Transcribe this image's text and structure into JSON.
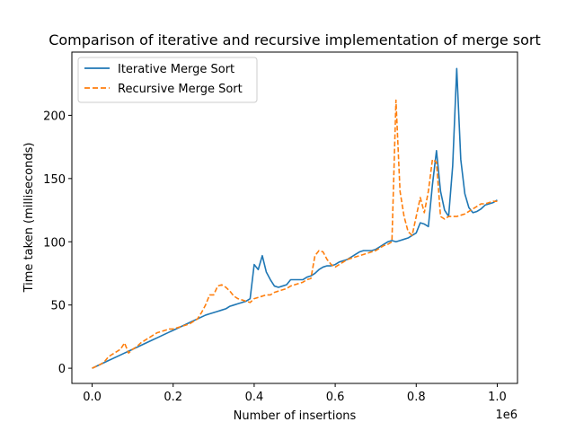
{
  "chart_data": {
    "type": "line",
    "title": "Comparison of iterative and recursive implementation of merge sort",
    "xlabel": "Number of insertions",
    "ylabel": "Time taken (milliseconds)",
    "x_offset_label": "1e6",
    "xlim": [
      -0.05,
      1.05
    ],
    "ylim": [
      -12,
      250
    ],
    "xticks": [
      0.0,
      0.2,
      0.4,
      0.6,
      0.8,
      1.0
    ],
    "xtick_labels": [
      "0.0",
      "0.2",
      "0.4",
      "0.6",
      "0.8",
      "1.0"
    ],
    "yticks": [
      0,
      50,
      100,
      150,
      200
    ],
    "ytick_labels": [
      "0",
      "50",
      "100",
      "150",
      "200"
    ],
    "grid": false,
    "legend_position": "top-left",
    "x": [
      0.0,
      0.01,
      0.02,
      0.03,
      0.04,
      0.05,
      0.06,
      0.07,
      0.08,
      0.09,
      0.1,
      0.11,
      0.12,
      0.13,
      0.14,
      0.15,
      0.16,
      0.17,
      0.18,
      0.19,
      0.2,
      0.21,
      0.22,
      0.23,
      0.24,
      0.25,
      0.26,
      0.27,
      0.28,
      0.29,
      0.3,
      0.31,
      0.32,
      0.33,
      0.34,
      0.35,
      0.36,
      0.37,
      0.38,
      0.39,
      0.4,
      0.41,
      0.42,
      0.43,
      0.44,
      0.45,
      0.46,
      0.47,
      0.48,
      0.49,
      0.5,
      0.51,
      0.52,
      0.53,
      0.54,
      0.55,
      0.56,
      0.57,
      0.58,
      0.59,
      0.6,
      0.61,
      0.62,
      0.63,
      0.64,
      0.65,
      0.66,
      0.67,
      0.68,
      0.69,
      0.7,
      0.71,
      0.72,
      0.73,
      0.74,
      0.75,
      0.76,
      0.77,
      0.78,
      0.79,
      0.8,
      0.81,
      0.82,
      0.83,
      0.84,
      0.85,
      0.86,
      0.87,
      0.88,
      0.89,
      0.9,
      0.91,
      0.92,
      0.93,
      0.94,
      0.95,
      0.96,
      0.97,
      0.98,
      0.99,
      1.0
    ],
    "series": [
      {
        "name": "Iterative Merge Sort",
        "color": "#1f77b4",
        "style": "solid",
        "values": [
          0,
          1.5,
          3,
          4.5,
          6,
          7.5,
          9,
          10.5,
          12,
          13.5,
          15,
          16.5,
          18,
          19.5,
          21,
          22.5,
          24,
          25.5,
          27,
          28.5,
          30,
          31.5,
          33,
          34.5,
          36,
          37.5,
          39,
          40.5,
          42,
          43,
          44,
          45,
          46,
          47,
          49,
          50,
          51,
          52,
          53,
          55,
          82,
          78,
          89,
          76,
          70,
          65,
          64,
          65,
          66,
          70,
          70,
          70,
          70,
          72,
          73,
          75,
          78,
          80,
          81,
          81,
          82,
          84,
          85,
          86,
          88,
          90,
          92,
          93,
          93,
          93,
          94,
          96,
          98,
          100,
          101,
          100,
          101,
          102,
          103,
          105,
          107,
          115,
          114,
          112,
          145,
          172,
          140,
          125,
          120,
          160,
          237,
          165,
          138,
          127,
          123,
          124,
          126,
          129,
          130,
          131,
          133
        ]
      },
      {
        "name": "Recursive Merge Sort",
        "color": "#ff7f0e",
        "style": "dashed",
        "values": [
          0,
          1.5,
          3,
          5,
          9,
          11,
          13,
          15,
          20,
          12,
          15,
          17,
          20,
          22,
          24,
          26,
          28,
          29,
          30,
          31,
          31,
          32,
          33,
          34,
          35,
          37,
          39,
          44,
          50,
          58,
          58,
          65,
          66,
          64,
          61,
          57,
          55,
          54,
          53,
          52,
          55,
          56,
          57,
          58,
          58,
          60,
          61,
          62,
          63,
          65,
          66,
          67,
          68,
          70,
          71,
          89,
          93,
          92,
          86,
          82,
          80,
          82,
          84,
          86,
          87,
          88,
          89,
          90,
          91,
          92,
          93,
          95,
          97,
          98,
          100,
          212,
          140,
          120,
          108,
          105,
          120,
          135,
          123,
          140,
          165,
          163,
          120,
          118,
          120,
          120,
          120,
          121,
          122,
          124,
          126,
          128,
          130,
          130,
          131,
          132,
          132
        ]
      }
    ]
  }
}
